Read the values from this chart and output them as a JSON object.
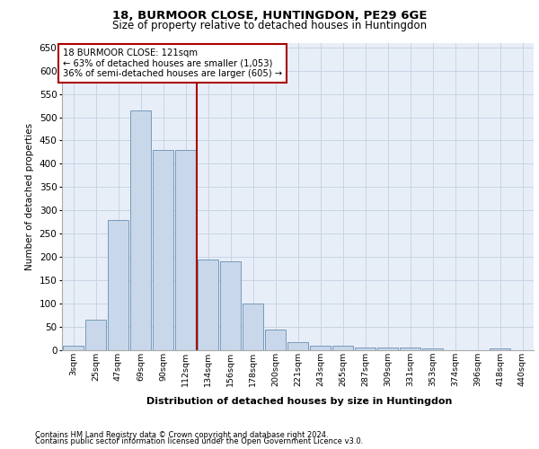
{
  "title1": "18, BURMOOR CLOSE, HUNTINGDON, PE29 6GE",
  "title2": "Size of property relative to detached houses in Huntingdon",
  "xlabel": "Distribution of detached houses by size in Huntingdon",
  "ylabel": "Number of detached properties",
  "bar_labels": [
    "3sqm",
    "25sqm",
    "47sqm",
    "69sqm",
    "90sqm",
    "112sqm",
    "134sqm",
    "156sqm",
    "178sqm",
    "200sqm",
    "221sqm",
    "243sqm",
    "265sqm",
    "287sqm",
    "309sqm",
    "331sqm",
    "353sqm",
    "374sqm",
    "396sqm",
    "418sqm",
    "440sqm"
  ],
  "bar_values": [
    10,
    65,
    280,
    515,
    430,
    430,
    195,
    190,
    100,
    45,
    18,
    10,
    10,
    5,
    5,
    5,
    3,
    0,
    0,
    3,
    0
  ],
  "bar_color": "#c8d8ea",
  "bar_edge_color": "#7799bb",
  "annotation_text": "18 BURMOOR CLOSE: 121sqm\n← 63% of detached houses are smaller (1,053)\n36% of semi-detached houses are larger (605) →",
  "vline_x": 5.5,
  "vline_color": "#aa0000",
  "ylim": [
    0,
    660
  ],
  "yticks": [
    0,
    50,
    100,
    150,
    200,
    250,
    300,
    350,
    400,
    450,
    500,
    550,
    600,
    650
  ],
  "grid_color": "#c8d4e4",
  "bg_color": "#e8eef8",
  "footnote1": "Contains HM Land Registry data © Crown copyright and database right 2024.",
  "footnote2": "Contains public sector information licensed under the Open Government Licence v3.0."
}
